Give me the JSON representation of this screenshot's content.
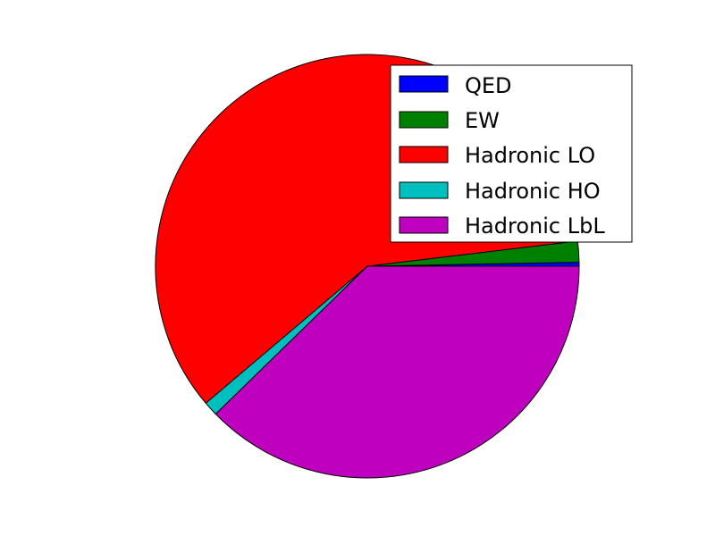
{
  "chart_data": {
    "type": "pie",
    "title": "",
    "labels": [
      "QED",
      "EW",
      "Hadronic LO",
      "Hadronic HO",
      "Hadronic LbL"
    ],
    "values": [
      0.3,
      1.6,
      59.3,
      1.1,
      37.7
    ],
    "colors": [
      "#0000ff",
      "#008000",
      "#ff0000",
      "#00bfbf",
      "#bf00bf"
    ],
    "start_angle_deg": 0,
    "direction": "counterclockwise",
    "legend_position": "top-right",
    "legend": [
      {
        "label": "QED",
        "color": "#0000ff"
      },
      {
        "label": "EW",
        "color": "#008000"
      },
      {
        "label": "Hadronic LO",
        "color": "#ff0000"
      },
      {
        "label": "Hadronic HO",
        "color": "#00bfbf"
      },
      {
        "label": "Hadronic LbL",
        "color": "#bf00bf"
      }
    ]
  }
}
